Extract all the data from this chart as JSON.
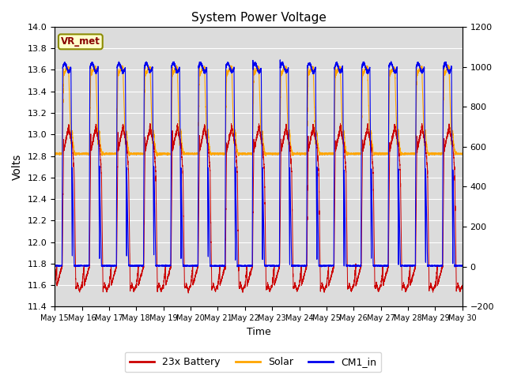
{
  "title": "System Power Voltage",
  "xlabel": "Time",
  "ylabel": "Volts",
  "ylim_left": [
    11.4,
    14.0
  ],
  "ylim_right": [
    -200,
    1200
  ],
  "yticks_left": [
    11.4,
    11.6,
    11.8,
    12.0,
    12.2,
    12.4,
    12.6,
    12.8,
    13.0,
    13.2,
    13.4,
    13.6,
    13.8,
    14.0
  ],
  "yticks_right": [
    -200,
    0,
    200,
    400,
    600,
    800,
    1000,
    1200
  ],
  "xtick_labels": [
    "May 15",
    "May 16",
    "May 17",
    "May 18",
    "May 19",
    "May 20",
    "May 21",
    "May 22",
    "May 23",
    "May 24",
    "May 25",
    "May 26",
    "May 27",
    "May 28",
    "May 29",
    "May 30"
  ],
  "colors": {
    "battery": "#CC0000",
    "solar": "#FFA500",
    "cm1_in": "#0000EE",
    "background_inner": "#DCDCDC",
    "grid": "#FFFFFF",
    "annotation_bg": "#FFFFCC",
    "annotation_border": "#8B8B00",
    "annotation_text": "#880000"
  },
  "legend": [
    "23x Battery",
    "Solar",
    "CM1_in"
  ],
  "annotation_text": "VR_met"
}
